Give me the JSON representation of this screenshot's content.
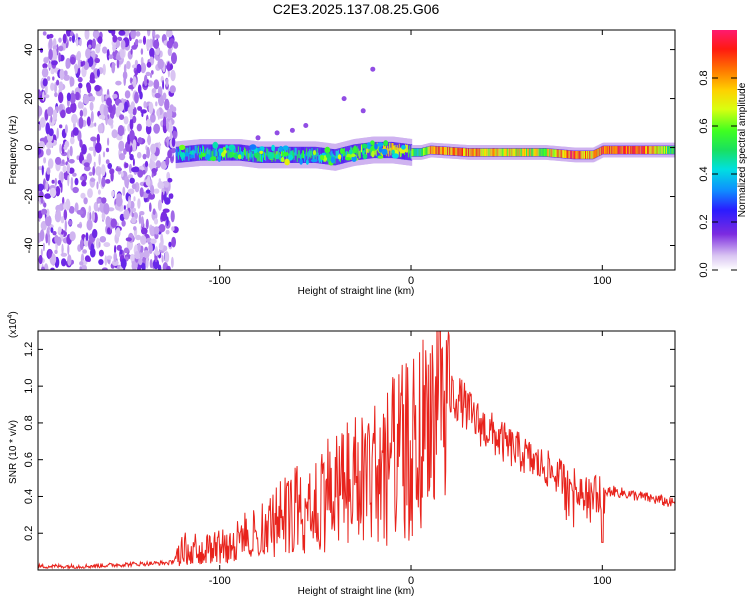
{
  "title": "C2E3.2025.137.08.25.G06",
  "chart_data": [
    {
      "type": "heatmap",
      "xlabel": "Height of straight line (km)",
      "ylabel": "Frequency (Hz)",
      "xlim": [
        -195,
        138
      ],
      "ylim": [
        -50,
        48
      ],
      "xticks": [
        -100,
        0,
        100
      ],
      "yticks": [
        40,
        20,
        0,
        -20,
        -40
      ],
      "x_tick_labels": [
        "-100",
        "0",
        "100"
      ],
      "y_tick_labels": [
        "40",
        "20",
        "0",
        "-20",
        "-40"
      ],
      "colorbar": {
        "label": "Normalized spectral amplitude",
        "range": [
          0,
          1
        ],
        "ticks": [
          "0.0",
          "0.2",
          "0.4",
          "0.6",
          "0.8"
        ]
      },
      "noise_region_x": [
        -195,
        -123
      ],
      "ridge": {
        "x": [
          -123,
          -110,
          -100,
          -90,
          -80,
          -70,
          -60,
          -50,
          -40,
          -30,
          -20,
          -10,
          0,
          5,
          10,
          30,
          50,
          70,
          85,
          95,
          100,
          120,
          138
        ],
        "freq": [
          -3,
          -2,
          -2,
          -2,
          -3,
          -3,
          -3,
          -3,
          -4,
          -2,
          -1,
          -1,
          -2,
          -2,
          -1,
          -2,
          -2,
          -2,
          -3,
          -3,
          -1,
          -1,
          -1
        ],
        "amplitude": [
          0.4,
          0.45,
          0.4,
          0.45,
          0.5,
          0.5,
          0.45,
          0.45,
          0.4,
          0.5,
          0.6,
          0.75,
          0.55,
          0.45,
          0.8,
          0.8,
          0.7,
          0.65,
          0.9,
          0.7,
          0.85,
          0.9,
          0.5
        ]
      }
    },
    {
      "type": "line",
      "xlabel": "Height of straight line (km)",
      "ylabel": "SNR (10 * v/v)",
      "y_multiplier_label": "(x10",
      "y_multiplier_exp": "4",
      "y_multiplier_close": ")",
      "xlim": [
        -195,
        138
      ],
      "ylim": [
        0,
        1.3
      ],
      "xticks": [
        -100,
        0,
        100
      ],
      "yticks": [
        0.2,
        0.4,
        0.6,
        0.8,
        1.0,
        1.2
      ],
      "x_tick_labels": [
        "-100",
        "0",
        "100"
      ],
      "y_tick_labels": [
        "0.2",
        "0.4",
        "0.6",
        "0.8",
        "1.0",
        "1.2"
      ],
      "color": "#e8231c",
      "series": [
        {
          "x": [
            -195,
            -170,
            -150,
            -125,
            -120,
            -115,
            -110,
            -105,
            -100,
            -95,
            -90,
            -85,
            -80,
            -75,
            -70,
            -65,
            -60,
            -55,
            -50,
            -45,
            -40,
            -35,
            -30,
            -25,
            -20,
            -15,
            -10,
            -5,
            0,
            5,
            10,
            14,
            18,
            22,
            26,
            30,
            35,
            40,
            45,
            50,
            55,
            60,
            65,
            70,
            75,
            80,
            85,
            90,
            95,
            100,
            105,
            110,
            115,
            120,
            125,
            130,
            138
          ],
          "values": [
            0.02,
            0.02,
            0.03,
            0.04,
            0.12,
            0.15,
            0.12,
            0.14,
            0.16,
            0.15,
            0.18,
            0.22,
            0.24,
            0.26,
            0.3,
            0.34,
            0.38,
            0.4,
            0.45,
            0.48,
            0.5,
            0.55,
            0.55,
            0.6,
            0.6,
            0.62,
            0.68,
            0.72,
            0.75,
            0.82,
            0.9,
            1.0,
            0.95,
            0.95,
            0.92,
            0.86,
            0.8,
            0.76,
            0.72,
            0.68,
            0.65,
            0.62,
            0.58,
            0.56,
            0.52,
            0.5,
            0.46,
            0.44,
            0.42,
            0.42,
            0.43,
            0.42,
            0.41,
            0.4,
            0.39,
            0.38,
            0.36
          ]
        }
      ]
    }
  ]
}
